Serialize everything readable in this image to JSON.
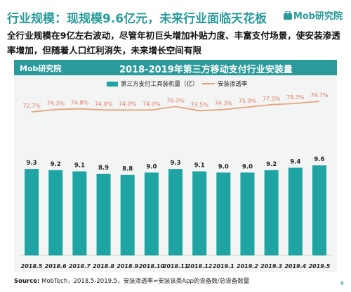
{
  "header": {
    "title": "行业规模：现规模9.6亿元，未来行业面临天花板",
    "brand": "Mob研究院"
  },
  "subtitle": "全行业规模在9亿左右波动，尽管年初巨头增加补贴力度、丰富支付场景，使安装渗透率增加，但随着人口红利消失，未来增长空间有限",
  "banner": {
    "brand": "Mob研究院",
    "title": "2018-2019年第三方移动支付行业安装量"
  },
  "legend": {
    "bar": "第三方支付工具装机量（亿）",
    "line": "安装渗透率"
  },
  "source": {
    "label": "Source:",
    "text": " MobTech，2018.5-2019.5，安装渗透率=安装该类App的设备数/总设备数量"
  },
  "page_number": "6",
  "colors": {
    "accent": "#2a9a9a",
    "bar": "#1fa3a3",
    "line": "#e8a37a",
    "line_label": "#e07a5f"
  },
  "chart_data": {
    "type": "bar",
    "title": "2018-2019年第三方移动支付行业安装量",
    "categories": [
      "2018.5",
      "2018.6",
      "2018.7",
      "2018.8",
      "2018.9",
      "2018.10",
      "2018.11",
      "2018.12",
      "2019.1",
      "2019.2",
      "2019.3",
      "2019.4",
      "2019.5"
    ],
    "series": [
      {
        "name": "第三方支付工具装机量（亿）",
        "type": "bar",
        "values": [
          9.3,
          9.2,
          9.1,
          8.9,
          8.8,
          9.0,
          9.3,
          9.1,
          9.0,
          9.0,
          9.2,
          9.4,
          9.6
        ],
        "labels": [
          "9.3",
          "9.2",
          "9.1",
          "8.9",
          "8.8",
          "9.0",
          "9.3",
          "9.1",
          "9.0",
          "9.0",
          "9.2",
          "9.4",
          "9.6"
        ]
      },
      {
        "name": "安装渗透率",
        "type": "line",
        "values": [
          72.7,
          74.3,
          74.8,
          74.0,
          74.0,
          74.0,
          76.3,
          73.5,
          74.3,
          75.9,
          77.5,
          78.3,
          79.7
        ],
        "labels": [
          "72.7%",
          "74.3%",
          "74.8%",
          "74.0%",
          "74.0%",
          "74.0%",
          "76.3%",
          "73.5%",
          "74.3%",
          "75.9%",
          "77.5%",
          "78.3%",
          "79.7%"
        ]
      }
    ],
    "legend_position": "top",
    "grid": false
  }
}
